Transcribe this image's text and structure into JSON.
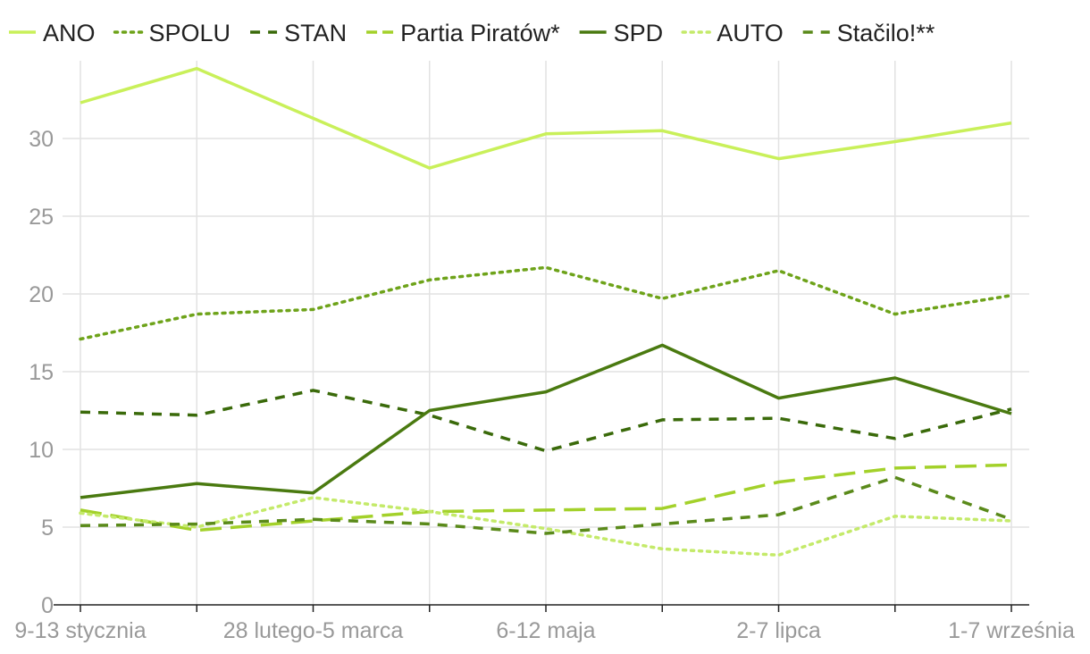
{
  "chart_data": {
    "type": "line",
    "title": "",
    "xlabel": "",
    "ylabel": "",
    "ylim": [
      0,
      35
    ],
    "yticks": [
      0,
      5,
      10,
      15,
      20,
      25,
      30
    ],
    "grid": "vertical-and-horizontal",
    "legend_position": "top",
    "categories": [
      "9-13 stycznia",
      "",
      "28 lutego-5 marca",
      "",
      "6-12 maja",
      "",
      "2-7 lipca",
      "",
      "1-7 września"
    ],
    "series": [
      {
        "name": "ANO",
        "color": "#c9f05a",
        "style": "solid",
        "values": [
          32.3,
          34.5,
          31.3,
          28.1,
          30.3,
          30.5,
          28.7,
          29.8,
          31.0
        ]
      },
      {
        "name": "SPOLU",
        "color": "#6ea31a",
        "style": "dotted",
        "values": [
          17.1,
          18.7,
          19.0,
          20.9,
          21.7,
          19.7,
          21.5,
          18.7,
          19.9
        ]
      },
      {
        "name": "STAN",
        "color": "#3a6a0a",
        "style": "dashed",
        "values": [
          12.4,
          12.2,
          13.8,
          12.2,
          9.9,
          11.9,
          12.0,
          10.7,
          12.6
        ]
      },
      {
        "name": "Partia Piratów*",
        "color": "#a3d12a",
        "style": "longdash",
        "values": [
          6.1,
          4.8,
          5.4,
          6.0,
          6.1,
          6.2,
          7.9,
          8.8,
          9.0
        ]
      },
      {
        "name": "SPD",
        "color": "#4a7a10",
        "style": "solid",
        "values": [
          6.9,
          7.8,
          7.2,
          12.5,
          13.7,
          16.7,
          13.3,
          14.6,
          12.3
        ]
      },
      {
        "name": "AUTO",
        "color": "#c4ea6a",
        "style": "dotted",
        "values": [
          5.9,
          5.0,
          6.9,
          6.0,
          4.9,
          3.6,
          3.2,
          5.7,
          5.4
        ]
      },
      {
        "name": "Stačilo!**",
        "color": "#5a8a1a",
        "style": "dashed",
        "values": [
          5.1,
          5.2,
          5.5,
          5.2,
          4.6,
          5.2,
          5.8,
          8.2,
          5.5
        ]
      }
    ]
  }
}
